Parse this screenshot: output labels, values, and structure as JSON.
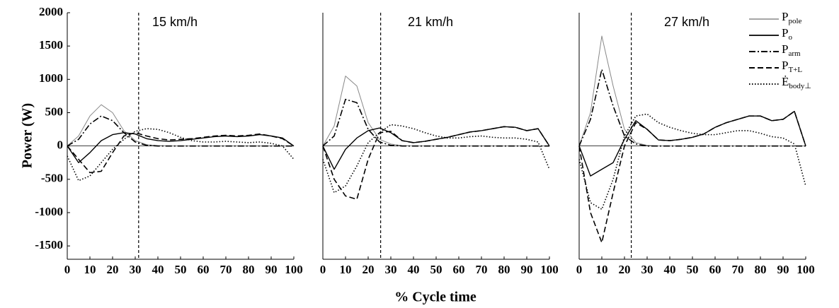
{
  "chart_data": [
    {
      "type": "line",
      "title": "15 km/h",
      "ylabel": "Power (W)",
      "x": [
        0,
        5,
        10,
        15,
        20,
        25,
        30,
        35,
        40,
        45,
        50,
        55,
        60,
        65,
        70,
        75,
        80,
        85,
        90,
        95,
        100
      ],
      "xlim": [
        0,
        100
      ],
      "xticks": [
        0,
        10,
        20,
        30,
        40,
        50,
        60,
        70,
        80,
        90,
        100
      ],
      "ylim": [
        -1700,
        2000
      ],
      "yticks": [
        -1500,
        -1000,
        -500,
        0,
        500,
        1000,
        1500,
        2000
      ],
      "vline": 31.5,
      "hline": 0,
      "series": [
        {
          "color": "#888888",
          "dash": "none",
          "width": 1,
          "values": [
            0,
            150,
            450,
            620,
            500,
            230,
            80,
            20,
            5,
            0,
            0,
            0,
            0,
            0,
            0,
            0,
            0,
            0,
            0,
            0,
            0
          ]
        },
        {
          "color": "#000000",
          "dash": "none",
          "width": 1.4,
          "values": [
            0,
            -250,
            -100,
            80,
            170,
            200,
            180,
            110,
            80,
            70,
            80,
            100,
            120,
            140,
            150,
            140,
            150,
            170,
            150,
            120,
            0
          ]
        },
        {
          "color": "#000000",
          "dash": "9,3,2,3",
          "width": 1.6,
          "values": [
            0,
            100,
            330,
            450,
            380,
            200,
            60,
            10,
            0,
            0,
            0,
            0,
            0,
            0,
            0,
            0,
            0,
            0,
            0,
            0,
            0
          ]
        },
        {
          "color": "#000000",
          "dash": "8,4",
          "width": 1.6,
          "values": [
            0,
            -200,
            -400,
            -380,
            -100,
            150,
            200,
            150,
            110,
            90,
            100,
            110,
            130,
            150,
            160,
            150,
            160,
            180,
            150,
            110,
            0
          ]
        },
        {
          "color": "#000000",
          "dash": "1.5,2.5",
          "width": 1.6,
          "values": [
            -150,
            -520,
            -450,
            -250,
            -50,
            100,
            220,
            260,
            250,
            200,
            130,
            80,
            60,
            60,
            70,
            60,
            50,
            60,
            40,
            0,
            -200
          ]
        }
      ]
    },
    {
      "type": "line",
      "title": "21 km/h",
      "xlabel": "% Cycle time",
      "x": [
        0,
        5,
        10,
        15,
        20,
        25,
        30,
        35,
        40,
        45,
        50,
        55,
        60,
        65,
        70,
        75,
        80,
        85,
        90,
        95,
        100
      ],
      "xlim": [
        0,
        100
      ],
      "xticks": [
        0,
        10,
        20,
        30,
        40,
        50,
        60,
        70,
        80,
        90,
        100
      ],
      "ylim": [
        -1700,
        2000
      ],
      "vline": 25.5,
      "hline": 0,
      "series": [
        {
          "color": "#888888",
          "dash": "none",
          "width": 1,
          "values": [
            0,
            300,
            1050,
            900,
            350,
            100,
            30,
            5,
            0,
            0,
            0,
            0,
            0,
            0,
            0,
            0,
            0,
            0,
            0,
            0,
            0
          ]
        },
        {
          "color": "#000000",
          "dash": "none",
          "width": 1.4,
          "values": [
            0,
            -350,
            -50,
            120,
            230,
            270,
            200,
            80,
            50,
            70,
            100,
            130,
            170,
            210,
            230,
            260,
            290,
            280,
            230,
            260,
            0
          ]
        },
        {
          "color": "#000000",
          "dash": "9,3,2,3",
          "width": 1.6,
          "values": [
            0,
            150,
            700,
            650,
            250,
            60,
            10,
            0,
            0,
            0,
            0,
            0,
            0,
            0,
            0,
            0,
            0,
            0,
            0,
            0,
            0
          ]
        },
        {
          "color": "#000000",
          "dash": "8,4",
          "width": 1.6,
          "values": [
            0,
            -500,
            -750,
            -800,
            -200,
            200,
            220,
            80,
            50,
            70,
            100,
            130,
            170,
            210,
            230,
            260,
            290,
            280,
            230,
            260,
            0
          ]
        },
        {
          "color": "#000000",
          "dash": "1.5,2.5",
          "width": 1.6,
          "values": [
            -200,
            -700,
            -600,
            -300,
            50,
            200,
            320,
            300,
            260,
            200,
            150,
            120,
            120,
            140,
            150,
            130,
            120,
            120,
            100,
            60,
            -350
          ]
        }
      ]
    },
    {
      "type": "line",
      "title": "27 km/h",
      "x": [
        0,
        5,
        10,
        15,
        20,
        25,
        30,
        35,
        40,
        45,
        50,
        55,
        60,
        65,
        70,
        75,
        80,
        85,
        90,
        95,
        100
      ],
      "xlim": [
        0,
        100
      ],
      "xticks": [
        0,
        10,
        20,
        30,
        40,
        50,
        60,
        70,
        80,
        90,
        100
      ],
      "ylim": [
        -1700,
        2000
      ],
      "vline": 23,
      "hline": 0,
      "series": [
        {
          "name": "P",
          "name_sub": "pole",
          "color": "#888888",
          "dash": "none",
          "width": 1,
          "values": [
            0,
            500,
            1650,
            900,
            250,
            50,
            10,
            0,
            0,
            0,
            0,
            0,
            0,
            0,
            0,
            0,
            0,
            0,
            0,
            0,
            0
          ]
        },
        {
          "name": "P",
          "name_sub": "o",
          "color": "#000000",
          "dash": "none",
          "width": 1.4,
          "values": [
            0,
            -450,
            -350,
            -250,
            100,
            380,
            250,
            90,
            80,
            100,
            130,
            180,
            280,
            350,
            400,
            450,
            450,
            380,
            400,
            520,
            0
          ]
        },
        {
          "name": "P",
          "name_sub": "arm",
          "color": "#000000",
          "dash": "9,3,2,3",
          "width": 1.6,
          "values": [
            0,
            400,
            1150,
            600,
            150,
            30,
            0,
            0,
            0,
            0,
            0,
            0,
            0,
            0,
            0,
            0,
            0,
            0,
            0,
            0,
            0
          ]
        },
        {
          "name": "P",
          "name_sub": "T+L",
          "color": "#000000",
          "dash": "8,4",
          "width": 1.6,
          "values": [
            0,
            -1000,
            -1450,
            -700,
            0,
            350,
            250,
            90,
            80,
            100,
            130,
            180,
            280,
            350,
            400,
            450,
            450,
            380,
            400,
            520,
            0
          ]
        },
        {
          "name": "Ė",
          "name_sub": "body⊥",
          "color": "#000000",
          "dash": "1.5,2.5",
          "width": 1.6,
          "values": [
            -200,
            -850,
            -950,
            -500,
            150,
            450,
            480,
            350,
            280,
            230,
            190,
            170,
            170,
            200,
            230,
            230,
            190,
            140,
            120,
            30,
            -600
          ]
        }
      ]
    }
  ]
}
